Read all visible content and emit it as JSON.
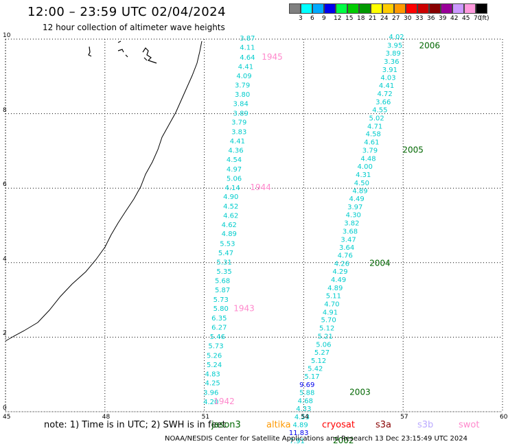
{
  "title": "12:00 – 23:59 UTC 02/04/2024",
  "subtitle": "12 hour collection of altimeter wave heights",
  "legend": {
    "unit": "(ft)",
    "bins": [
      {
        "label": "",
        "color": "#808080"
      },
      {
        "label": "3",
        "color": "#00ffff"
      },
      {
        "label": "6",
        "color": "#00aaff"
      },
      {
        "label": "9",
        "color": "#0000ee"
      },
      {
        "label": "12",
        "color": "#00ff44"
      },
      {
        "label": "15",
        "color": "#00cc00"
      },
      {
        "label": "18",
        "color": "#009900"
      },
      {
        "label": "21",
        "color": "#ffff00"
      },
      {
        "label": "24",
        "color": "#ffcc00"
      },
      {
        "label": "27",
        "color": "#ff9900"
      },
      {
        "label": "30",
        "color": "#ff0000"
      },
      {
        "label": "33",
        "color": "#cc0000"
      },
      {
        "label": "36",
        "color": "#880000"
      },
      {
        "label": "39",
        "color": "#990099"
      },
      {
        "label": "42",
        "color": "#cc99ff"
      },
      {
        "label": "45",
        "color": "#ff99dd"
      },
      {
        "label": "70",
        "color": "#000000"
      }
    ]
  },
  "axes": {
    "x_ticks": [
      "45",
      "48",
      "51",
      "54",
      "57",
      "60"
    ],
    "y_ticks": [
      "0",
      "2",
      "4",
      "6",
      "8",
      "10"
    ],
    "xlim": [
      45,
      60
    ],
    "ylim": [
      0,
      10
    ],
    "grid": true
  },
  "note": "note:  1) Time is in UTC; 2) SWH is in feet",
  "missions": [
    {
      "name": "jason3",
      "color": "#006600"
    },
    {
      "name": "altika",
      "color": "#ff9900"
    },
    {
      "name": "cryosat",
      "color": "#ff0000"
    },
    {
      "name": "s3a",
      "color": "#880000"
    },
    {
      "name": "s3b",
      "color": "#bbaaff"
    },
    {
      "name": "swot",
      "color": "#ff88cc"
    }
  ],
  "credit": "NOAA/NESDIS Center for Satellite Applications and Research    13 Dec 23:15:49 UTC 2024",
  "tracks": [
    {
      "name": "swot",
      "color": "#ff88cc",
      "points": [
        {
          "lon": 52.3,
          "lat": 9.96,
          "v": "3.87"
        },
        {
          "lon": 52.3,
          "lat": 9.71,
          "v": "4.11"
        },
        {
          "lon": 52.3,
          "lat": 9.45,
          "v": "4.64"
        },
        {
          "lon": 52.25,
          "lat": 9.2,
          "v": "4.41"
        },
        {
          "lon": 52.2,
          "lat": 8.95,
          "v": "4.09"
        },
        {
          "lon": 52.15,
          "lat": 8.7,
          "v": "3.79"
        },
        {
          "lon": 52.15,
          "lat": 8.45,
          "v": "3.80"
        },
        {
          "lon": 52.1,
          "lat": 8.2,
          "v": "3.84"
        },
        {
          "lon": 52.1,
          "lat": 7.95,
          "v": "3.89"
        },
        {
          "lon": 52.05,
          "lat": 7.71,
          "v": "3.79"
        },
        {
          "lon": 52.05,
          "lat": 7.45,
          "v": "3.83"
        },
        {
          "lon": 52.0,
          "lat": 7.2,
          "v": "4.41"
        },
        {
          "lon": 51.95,
          "lat": 6.95,
          "v": "4.36"
        },
        {
          "lon": 51.9,
          "lat": 6.7,
          "v": "4.54"
        },
        {
          "lon": 51.9,
          "lat": 6.45,
          "v": "4.97"
        },
        {
          "lon": 51.9,
          "lat": 6.2,
          "v": "5.06"
        },
        {
          "lon": 51.85,
          "lat": 5.95,
          "v": "4.14"
        },
        {
          "lon": 51.8,
          "lat": 5.71,
          "v": "4.90"
        },
        {
          "lon": 51.8,
          "lat": 5.45,
          "v": "4.52"
        },
        {
          "lon": 51.8,
          "lat": 5.2,
          "v": "4.62"
        },
        {
          "lon": 51.75,
          "lat": 4.95,
          "v": "4.62"
        },
        {
          "lon": 51.75,
          "lat": 4.71,
          "v": "4.89"
        },
        {
          "lon": 51.7,
          "lat": 4.45,
          "v": "5.53"
        },
        {
          "lon": 51.65,
          "lat": 4.2,
          "v": "5.47"
        },
        {
          "lon": 51.6,
          "lat": 3.95,
          "v": "5.31"
        },
        {
          "lon": 51.6,
          "lat": 3.7,
          "v": "5.35"
        },
        {
          "lon": 51.55,
          "lat": 3.45,
          "v": "5.68"
        },
        {
          "lon": 51.55,
          "lat": 3.2,
          "v": "5.87"
        },
        {
          "lon": 51.5,
          "lat": 2.95,
          "v": "5.73"
        },
        {
          "lon": 51.5,
          "lat": 2.71,
          "v": "5.80"
        },
        {
          "lon": 51.45,
          "lat": 2.45,
          "v": "6.35"
        },
        {
          "lon": 51.45,
          "lat": 2.2,
          "v": "6.27"
        },
        {
          "lon": 51.4,
          "lat": 1.95,
          "v": "5.46"
        },
        {
          "lon": 51.35,
          "lat": 1.7,
          "v": "5.73"
        },
        {
          "lon": 51.3,
          "lat": 1.45,
          "v": "5.26"
        },
        {
          "lon": 51.3,
          "lat": 1.2,
          "v": "5.24"
        },
        {
          "lon": 51.25,
          "lat": 0.95,
          "v": "4.83"
        },
        {
          "lon": 51.25,
          "lat": 0.71,
          "v": "4.25"
        },
        {
          "lon": 51.2,
          "lat": 0.45,
          "v": "3.96"
        },
        {
          "lon": 51.2,
          "lat": 0.2,
          "v": "4.20"
        }
      ],
      "times": [
        {
          "lon": 53.05,
          "lat": 9.45,
          "t": "1945"
        },
        {
          "lon": 52.7,
          "lat": 5.95,
          "t": "1944"
        },
        {
          "lon": 52.2,
          "lat": 2.7,
          "t": "1943"
        },
        {
          "lon": 51.6,
          "lat": 0.2,
          "t": "1942"
        }
      ]
    },
    {
      "name": "jason3",
      "color": "#006600",
      "points": [
        {
          "lon": 56.8,
          "lat": 10.0,
          "v": "4.02"
        },
        {
          "lon": 56.75,
          "lat": 9.77,
          "v": "3.95"
        },
        {
          "lon": 56.7,
          "lat": 9.56,
          "v": "3.89"
        },
        {
          "lon": 56.65,
          "lat": 9.34,
          "v": "3.36"
        },
        {
          "lon": 56.6,
          "lat": 9.12,
          "v": "3.91"
        },
        {
          "lon": 56.55,
          "lat": 8.9,
          "v": "4.03"
        },
        {
          "lon": 56.5,
          "lat": 8.69,
          "v": "4.41"
        },
        {
          "lon": 56.45,
          "lat": 8.47,
          "v": "4.72"
        },
        {
          "lon": 56.4,
          "lat": 8.25,
          "v": "3.66"
        },
        {
          "lon": 56.3,
          "lat": 8.04,
          "v": "4.55"
        },
        {
          "lon": 56.2,
          "lat": 7.82,
          "v": "5.02"
        },
        {
          "lon": 56.15,
          "lat": 7.6,
          "v": "4.71"
        },
        {
          "lon": 56.1,
          "lat": 7.39,
          "v": "4.58"
        },
        {
          "lon": 56.05,
          "lat": 7.17,
          "v": "4.61"
        },
        {
          "lon": 56.0,
          "lat": 6.95,
          "v": "3.79"
        },
        {
          "lon": 55.95,
          "lat": 6.73,
          "v": "4.48"
        },
        {
          "lon": 55.85,
          "lat": 6.52,
          "v": "4.00"
        },
        {
          "lon": 55.8,
          "lat": 6.3,
          "v": "4.31"
        },
        {
          "lon": 55.75,
          "lat": 6.08,
          "v": "4.50"
        },
        {
          "lon": 55.7,
          "lat": 5.87,
          "v": "4.89"
        },
        {
          "lon": 55.6,
          "lat": 5.65,
          "v": "4.49"
        },
        {
          "lon": 55.55,
          "lat": 5.43,
          "v": "3.97"
        },
        {
          "lon": 55.5,
          "lat": 5.22,
          "v": "4.30"
        },
        {
          "lon": 55.45,
          "lat": 5.0,
          "v": "3.82"
        },
        {
          "lon": 55.4,
          "lat": 4.78,
          "v": "3.68"
        },
        {
          "lon": 55.35,
          "lat": 4.56,
          "v": "3.47"
        },
        {
          "lon": 55.3,
          "lat": 4.35,
          "v": "3.64"
        },
        {
          "lon": 55.25,
          "lat": 4.13,
          "v": "4.76"
        },
        {
          "lon": 55.15,
          "lat": 3.91,
          "v": "4.26"
        },
        {
          "lon": 55.1,
          "lat": 3.7,
          "v": "4.29"
        },
        {
          "lon": 55.05,
          "lat": 3.48,
          "v": "4.49"
        },
        {
          "lon": 54.95,
          "lat": 3.26,
          "v": "4.89"
        },
        {
          "lon": 54.9,
          "lat": 3.05,
          "v": "5.11"
        },
        {
          "lon": 54.85,
          "lat": 2.83,
          "v": "4.70"
        },
        {
          "lon": 54.8,
          "lat": 2.61,
          "v": "4.91"
        },
        {
          "lon": 54.75,
          "lat": 2.4,
          "v": "5.70"
        },
        {
          "lon": 54.7,
          "lat": 2.18,
          "v": "5.12"
        },
        {
          "lon": 54.65,
          "lat": 1.96,
          "v": "5.21"
        },
        {
          "lon": 54.6,
          "lat": 1.74,
          "v": "5.06"
        },
        {
          "lon": 54.55,
          "lat": 1.53,
          "v": "5.27"
        },
        {
          "lon": 54.45,
          "lat": 1.31,
          "v": "5.12"
        },
        {
          "lon": 54.35,
          "lat": 1.1,
          "v": "5.42"
        },
        {
          "lon": 54.25,
          "lat": 0.88,
          "v": "5.17"
        },
        {
          "lon": 54.1,
          "lat": 0.66,
          "v": "9.69",
          "color": "#0000ee"
        },
        {
          "lon": 54.1,
          "lat": 0.45,
          "v": "5.88"
        },
        {
          "lon": 54.05,
          "lat": 0.23,
          "v": "4.68"
        },
        {
          "lon": 54.0,
          "lat": 0.02,
          "v": "4.33"
        },
        {
          "lon": 53.95,
          "lat": -0.2,
          "v": "4.53"
        },
        {
          "lon": 53.9,
          "lat": -0.41,
          "v": "4.89"
        },
        {
          "lon": 53.85,
          "lat": -0.63,
          "v": "11.83",
          "color": "#0000ee"
        },
        {
          "lon": 53.8,
          "lat": -0.85,
          "v": "7.91"
        }
      ],
      "times": [
        {
          "lon": 57.8,
          "lat": 9.75,
          "t": "2006"
        },
        {
          "lon": 57.3,
          "lat": 6.95,
          "t": "2005"
        },
        {
          "lon": 56.3,
          "lat": 3.91,
          "t": "2004"
        },
        {
          "lon": 55.7,
          "lat": 0.45,
          "t": "2003"
        },
        {
          "lon": 55.2,
          "lat": -0.85,
          "t": "2002"
        }
      ]
    }
  ]
}
